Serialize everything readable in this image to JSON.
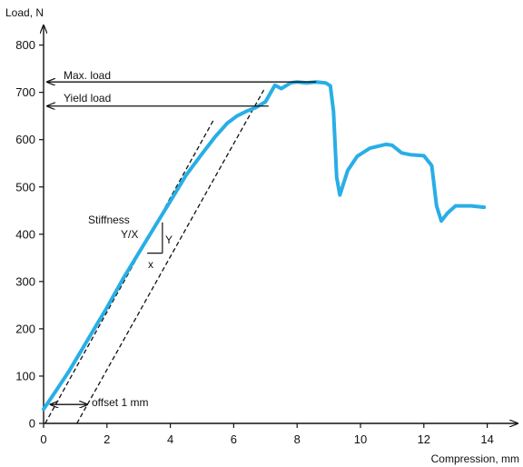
{
  "chart_data": {
    "type": "line",
    "xlabel": "Compression, mm",
    "ylabel": "Load, N",
    "xlim": [
      0,
      15
    ],
    "ylim": [
      0,
      840
    ],
    "xticks": [
      0,
      2,
      4,
      6,
      8,
      10,
      12,
      14
    ],
    "yticks": [
      0,
      100,
      200,
      300,
      400,
      500,
      600,
      700,
      800
    ],
    "grid": false,
    "series": [
      {
        "color": "#29aee6",
        "x": [
          0,
          0.4,
          0.8,
          1.2,
          1.6,
          2.0,
          2.5,
          3.0,
          3.5,
          4.0,
          4.5,
          5.0,
          5.4,
          5.8,
          6.1,
          6.4,
          6.7,
          7.0,
          7.3,
          7.5,
          7.8,
          8.0,
          8.3,
          8.6,
          8.9,
          9.05,
          9.15,
          9.25,
          9.35,
          9.6,
          9.9,
          10.3,
          10.8,
          11.0,
          11.3,
          11.6,
          12.0,
          12.25,
          12.4,
          12.55,
          12.75,
          13.0,
          13.5,
          13.9
        ],
        "y": [
          30,
          70,
          110,
          155,
          200,
          245,
          305,
          360,
          415,
          470,
          525,
          570,
          605,
          635,
          650,
          660,
          668,
          680,
          715,
          708,
          720,
          722,
          720,
          722,
          720,
          714,
          660,
          520,
          483,
          535,
          565,
          582,
          590,
          588,
          572,
          568,
          566,
          545,
          460,
          428,
          445,
          460,
          460,
          457
        ]
      }
    ],
    "annotations": {
      "max_load": {
        "label": "Max. load",
        "value": 722,
        "x_end": 8.6
      },
      "yield_load": {
        "label": "Yield load",
        "value": 671,
        "x_end": 7.1
      },
      "stiffness": {
        "title": "Stiffness",
        "ratio": "Y/X",
        "x_label": "x",
        "y_label": "Y"
      },
      "offset": {
        "label": "offset 1 mm",
        "value": 1
      }
    }
  }
}
